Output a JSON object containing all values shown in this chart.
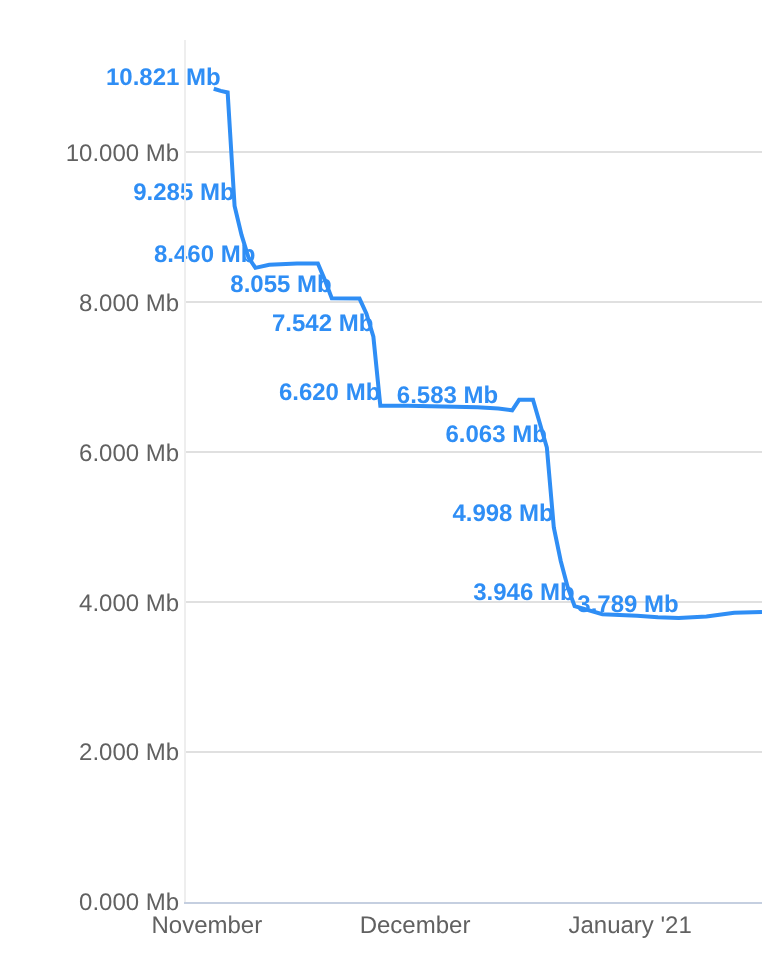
{
  "chart_data": {
    "type": "line",
    "x": [
      "2020-11-02",
      "2020-11-03",
      "2020-11-04",
      "2020-11-05",
      "2020-11-06",
      "2020-11-07",
      "2020-11-08",
      "2020-11-10",
      "2020-11-14",
      "2020-11-17",
      "2020-11-18",
      "2020-11-19",
      "2020-11-23",
      "2020-11-24",
      "2020-11-25",
      "2020-11-26",
      "2020-11-30",
      "2020-12-05",
      "2020-12-10",
      "2020-12-13",
      "2020-12-15",
      "2020-12-16",
      "2020-12-18",
      "2020-12-20",
      "2020-12-21",
      "2020-12-22",
      "2020-12-23",
      "2020-12-24",
      "2020-12-28",
      "2021-01-02",
      "2021-01-05",
      "2021-01-08",
      "2021-01-12",
      "2021-01-16",
      "2021-01-20"
    ],
    "series": [
      {
        "color": "#2f8ef5",
        "values": [
          10.85,
          10.821,
          10.8,
          9.285,
          8.9,
          8.6,
          8.46,
          8.5,
          8.52,
          8.52,
          8.3,
          8.055,
          8.05,
          7.85,
          7.542,
          6.62,
          6.62,
          6.61,
          6.6,
          6.583,
          6.56,
          6.7,
          6.7,
          6.063,
          4.998,
          4.55,
          4.2,
          3.946,
          3.84,
          3.82,
          3.8,
          3.789,
          3.81,
          3.86,
          3.87
        ],
        "value_labels": [
          null,
          "10.821 Mb",
          null,
          "9.285 Mb",
          null,
          null,
          "8.460 Mb",
          null,
          null,
          null,
          null,
          "8.055 Mb",
          null,
          null,
          "7.542 Mb",
          "6.620 Mb",
          null,
          null,
          null,
          "6.583 Mb",
          null,
          null,
          null,
          "6.063 Mb",
          "4.998 Mb",
          null,
          null,
          "3.946 Mb",
          null,
          null,
          null,
          "3.789 Mb",
          null,
          null,
          null
        ]
      }
    ],
    "xlim": [
      "2020-10-29",
      "2021-01-20"
    ],
    "xticks": [
      {
        "value": "2020-11-01",
        "label": "November"
      },
      {
        "value": "2020-12-01",
        "label": "December"
      },
      {
        "value": "2021-01-01",
        "label": "January '21"
      }
    ],
    "ylim": [
      0,
      11.5
    ],
    "yticks": [
      {
        "value": 0,
        "label": "0.000 Mb"
      },
      {
        "value": 2,
        "label": "2.000 Mb"
      },
      {
        "value": 4,
        "label": "4.000 Mb"
      },
      {
        "value": 6,
        "label": "6.000 Mb"
      },
      {
        "value": 8,
        "label": "8.000 Mb"
      },
      {
        "value": 10,
        "label": "10.000 Mb"
      }
    ],
    "grid": "y",
    "marker": "none",
    "line_style": "solid"
  }
}
